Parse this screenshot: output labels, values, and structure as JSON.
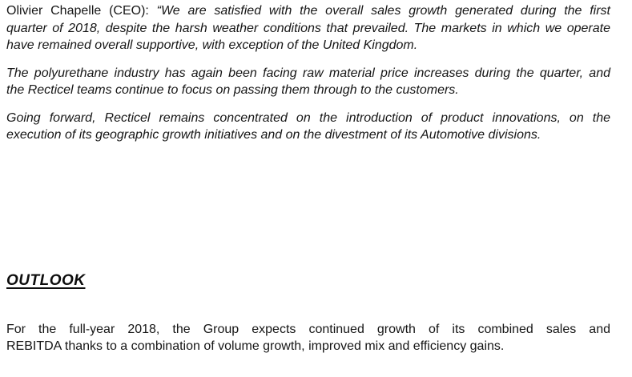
{
  "document": {
    "ceo_statement": {
      "speaker": "Olivier Chapelle (CEO):",
      "lines": {
        "l1": "“We are satisfied with the overall sales growth generated during the first",
        "l2": "quarter of 2018, despite the harsh weather conditions that prevailed. The markets in which we operate",
        "l3": "have remained overall supportive, with exception of the United Kingdom."
      }
    },
    "quote_para2": {
      "l1": "The polyurethane industry has again been facing raw material price increases during the quarter, and",
      "l2": "the Recticel teams continue to focus on passing them through to the customers."
    },
    "quote_para3": {
      "l1": "Going forward, Recticel remains concentrated on the introduction of product innovations, on the",
      "l2": "execution of its geographic growth initiatives and on the divestment of its Automotive divisions."
    },
    "outlook": {
      "heading": "OUTLOOK",
      "para": {
        "l1": "For the full-year 2018, the Group expects continued growth of its combined sales and",
        "l2": "REBITDA thanks to a combination of volume growth, improved mix and efficiency gains."
      }
    }
  }
}
